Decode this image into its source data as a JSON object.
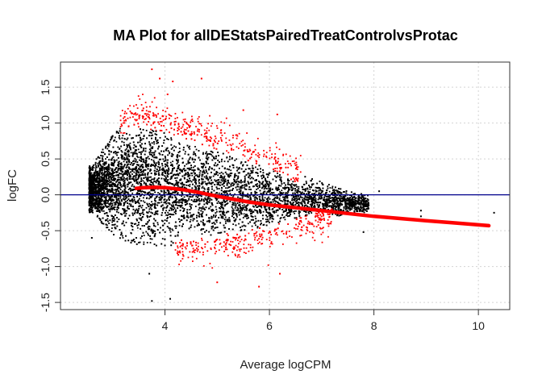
{
  "chart_data": {
    "type": "scatter",
    "title": "MA Plot for allDEStatsPairedTreatControlvsProtac",
    "xlabel": "Average logCPM",
    "ylabel": "logFC",
    "xlim": [
      2.0,
      10.6
    ],
    "ylim": [
      -1.6,
      1.85
    ],
    "xticks": [
      4,
      6,
      8,
      10
    ],
    "xtick_labels": [
      "4",
      "6",
      "8",
      "10"
    ],
    "yticks": [
      -1.5,
      -1.0,
      -0.5,
      0.0,
      0.5,
      1.0,
      1.5
    ],
    "ytick_labels": [
      "-1.5",
      "-1.0",
      "-0.5",
      "0.0",
      "0.5",
      "1.0",
      "1.5"
    ],
    "grid": true,
    "hline": {
      "y": 0.0,
      "color": "#00008b"
    },
    "colors": {
      "non_significant": "#000000",
      "significant": "#ff0000",
      "trend": "#ff0000"
    },
    "trend_line": {
      "x": [
        3.45,
        3.6,
        3.8,
        4.0,
        4.2,
        4.4,
        4.6,
        4.8,
        5.0,
        5.3,
        5.6,
        6.0,
        6.5,
        7.0,
        7.5,
        8.0,
        8.5,
        9.0,
        9.5,
        10.2
      ],
      "y": [
        0.09,
        0.1,
        0.105,
        0.1,
        0.085,
        0.065,
        0.04,
        0.01,
        -0.02,
        -0.06,
        -0.1,
        -0.14,
        -0.18,
        -0.22,
        -0.26,
        -0.3,
        -0.33,
        -0.36,
        -0.39,
        -0.43
      ]
    },
    "point_cloud": {
      "x_range": [
        2.55,
        7.9
      ],
      "upper_fc": [
        [
          2.6,
          0.4
        ],
        [
          3.0,
          0.85
        ],
        [
          3.4,
          1.1
        ],
        [
          4.0,
          1.0
        ],
        [
          5.0,
          0.75
        ],
        [
          6.0,
          0.5
        ],
        [
          6.5,
          0.32
        ],
        [
          7.0,
          0.18
        ],
        [
          7.5,
          0.05
        ],
        [
          7.9,
          0.0
        ]
      ],
      "lower_fc": [
        [
          2.6,
          -0.25
        ],
        [
          3.0,
          -0.55
        ],
        [
          3.4,
          -0.7
        ],
        [
          4.0,
          -0.72
        ],
        [
          5.0,
          -0.68
        ],
        [
          6.0,
          -0.55
        ],
        [
          6.5,
          -0.45
        ],
        [
          7.0,
          -0.35
        ],
        [
          7.5,
          -0.27
        ],
        [
          7.9,
          -0.25
        ]
      ],
      "sig_upper_range": [
        3.15,
        6.6
      ],
      "sig_lower_range": [
        4.2,
        7.2
      ]
    },
    "outliers": [
      {
        "x": 3.75,
        "y": 1.75,
        "sig": true
      },
      {
        "x": 3.9,
        "y": 1.62,
        "sig": true
      },
      {
        "x": 4.15,
        "y": 1.58,
        "sig": true
      },
      {
        "x": 4.7,
        "y": 1.62,
        "sig": true
      },
      {
        "x": 4.05,
        "y": 1.4,
        "sig": true
      },
      {
        "x": 5.5,
        "y": 1.18,
        "sig": true
      },
      {
        "x": 6.15,
        "y": 1.12,
        "sig": true
      },
      {
        "x": 3.7,
        "y": -1.1,
        "sig": false
      },
      {
        "x": 3.75,
        "y": -1.48,
        "sig": false
      },
      {
        "x": 4.1,
        "y": -1.45,
        "sig": false
      },
      {
        "x": 5.0,
        "y": -1.22,
        "sig": true
      },
      {
        "x": 5.8,
        "y": -1.28,
        "sig": true
      },
      {
        "x": 6.2,
        "y": -1.1,
        "sig": true
      },
      {
        "x": 8.1,
        "y": 0.05,
        "sig": false
      },
      {
        "x": 8.9,
        "y": -0.22,
        "sig": false
      },
      {
        "x": 8.9,
        "y": -0.3,
        "sig": false
      },
      {
        "x": 10.3,
        "y": -0.25,
        "sig": false
      },
      {
        "x": 7.8,
        "y": -0.52,
        "sig": false
      },
      {
        "x": 2.6,
        "y": -0.6,
        "sig": false
      }
    ]
  }
}
